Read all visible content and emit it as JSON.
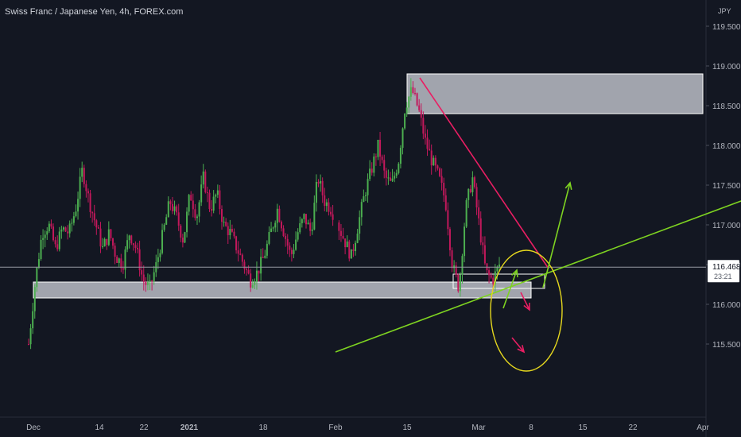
{
  "chart_data": {
    "type": "candlestick",
    "title": "Swiss Franc / Japanese Yen, 4h, FOREX.com",
    "currency": "JPY",
    "y_ticks": [
      "119.500",
      "119.000",
      "118.500",
      "118.000",
      "117.500",
      "117.000",
      "116.500",
      "116.000",
      "115.500"
    ],
    "ylim": [
      115.4,
      119.75
    ],
    "x_ticks": [
      "Dec",
      "14",
      "22",
      "2021",
      "18",
      "Feb",
      "15",
      "Mar",
      "8",
      "15",
      "22",
      "Apr"
    ],
    "x_tick_bold": [
      false,
      false,
      false,
      true,
      false,
      false,
      false,
      false,
      false,
      false,
      false,
      false
    ],
    "last_price": "116.468",
    "countdown": "23:21",
    "grid": false,
    "colors": {
      "background": "#131722",
      "up_candle": "#4caf50",
      "down_candle": "#c2185b",
      "axis_text": "#b2b5be",
      "support_trendline": "#7ed321",
      "resistance_trendline": "#e91e63",
      "zone_fill": "#d1d4dc",
      "ellipse": "#e6d81e",
      "price_line": "#9598a1"
    },
    "path_closes": [
      115.5,
      116.3,
      116.9,
      117.0,
      116.7,
      116.95,
      116.9,
      117.2,
      117.7,
      117.3,
      117.0,
      116.7,
      116.9,
      116.6,
      116.5,
      116.9,
      116.7,
      116.3,
      116.2,
      116.5,
      116.9,
      117.3,
      117.1,
      116.8,
      117.4,
      117.1,
      117.6,
      117.2,
      117.4,
      117.0,
      116.9,
      116.7,
      116.5,
      116.3,
      116.4,
      116.6,
      116.9,
      117.2,
      116.9,
      116.6,
      116.9,
      117.1,
      116.9,
      117.6,
      117.3,
      117.2,
      117.0,
      116.8,
      116.6,
      117.0,
      117.4,
      117.7,
      118.0,
      117.6,
      117.5,
      117.8,
      118.5,
      118.7,
      118.45,
      118.05,
      117.8,
      117.6,
      117.3,
      116.5,
      116.2,
      117.2,
      117.6,
      117.0,
      116.4,
      116.3,
      116.5
    ]
  },
  "annotations": {
    "upper_zone": {
      "from": "Feb 15",
      "to": "Apr",
      "high": 118.9,
      "low": 118.4
    },
    "lower_zone": {
      "from": "Dec",
      "to": "Mar 8",
      "high": 116.28,
      "low": 116.08
    },
    "small_zone": {
      "from": "Feb 25",
      "to": "Mar 9",
      "high": 116.38,
      "low": 116.2
    },
    "support_trendline": {
      "from": [
        "Feb 1",
        115.4
      ],
      "to": [
        "Apr",
        117.3
      ]
    },
    "resistance_trendline": {
      "from": [
        "Feb 16",
        118.85
      ],
      "to": [
        "Mar 9",
        116.45
      ]
    }
  }
}
